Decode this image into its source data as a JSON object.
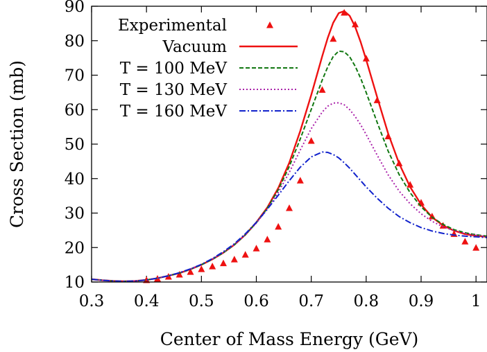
{
  "chart_data": {
    "type": "line",
    "title": "",
    "xlabel": "Center of Mass Energy (GeV)",
    "ylabel": "Cross Section (mb)",
    "xlim": [
      0.3,
      1.02
    ],
    "ylim": [
      10,
      90
    ],
    "xticks": [
      0.3,
      0.4,
      0.5,
      0.6,
      0.7,
      0.8,
      0.9,
      1
    ],
    "xtick_labels": [
      "0.3",
      "0.4",
      "0.5",
      "0.6",
      "0.7",
      "0.8",
      "0.9",
      "1"
    ],
    "yticks": [
      10,
      20,
      30,
      40,
      50,
      60,
      70,
      80,
      90
    ],
    "ytick_labels": [
      "10",
      "20",
      "30",
      "40",
      "50",
      "60",
      "70",
      "80",
      "90"
    ],
    "grid": false,
    "legend_position": "top-left",
    "series": [
      {
        "name": "Experimental",
        "style": "triangle-markers",
        "color": "#ee1111",
        "x": [
          0.4,
          0.42,
          0.44,
          0.46,
          0.48,
          0.5,
          0.52,
          0.54,
          0.56,
          0.58,
          0.6,
          0.62,
          0.64,
          0.66,
          0.68,
          0.7,
          0.72,
          0.74,
          0.76,
          0.78,
          0.8,
          0.82,
          0.84,
          0.86,
          0.88,
          0.9,
          0.92,
          0.94,
          0.96,
          0.98,
          1.0
        ],
        "y": [
          10.6,
          11.0,
          11.6,
          12.2,
          13.0,
          13.8,
          14.6,
          15.5,
          16.6,
          18.0,
          19.8,
          22.4,
          26.1,
          31.5,
          39.5,
          51.0,
          65.8,
          80.6,
          88.2,
          84.8,
          74.9,
          62.8,
          52.3,
          44.5,
          38.3,
          33.1,
          29.1,
          26.4,
          24.0,
          21.8,
          20.0
        ]
      },
      {
        "name": "Vacuum",
        "style": "solid",
        "color": "#ee1111",
        "x": [
          0.3,
          0.32,
          0.34,
          0.36,
          0.38,
          0.4,
          0.42,
          0.44,
          0.46,
          0.48,
          0.5,
          0.52,
          0.54,
          0.56,
          0.58,
          0.6,
          0.62,
          0.64,
          0.66,
          0.68,
          0.7,
          0.72,
          0.73,
          0.74,
          0.75,
          0.76,
          0.77,
          0.78,
          0.79,
          0.8,
          0.82,
          0.84,
          0.86,
          0.88,
          0.9,
          0.92,
          0.94,
          0.96,
          0.98,
          1.0,
          1.02
        ],
        "y": [
          10.8,
          10.5,
          10.3,
          10.2,
          10.3,
          10.6,
          11.1,
          11.8,
          12.6,
          13.7,
          15.0,
          16.6,
          18.5,
          20.8,
          23.7,
          27.3,
          31.6,
          37.3,
          44.6,
          53.8,
          64.3,
          75.5,
          80.8,
          85.2,
          88.0,
          88.6,
          87.2,
          84.0,
          79.6,
          74.5,
          63.6,
          53.1,
          44.4,
          37.6,
          32.5,
          28.8,
          26.4,
          24.9,
          23.9,
          23.4,
          23.1
        ]
      },
      {
        "name": "T = 100 MeV",
        "style": "dashed",
        "color": "#117711",
        "x": [
          0.3,
          0.32,
          0.34,
          0.36,
          0.38,
          0.4,
          0.42,
          0.44,
          0.46,
          0.48,
          0.5,
          0.52,
          0.54,
          0.56,
          0.58,
          0.6,
          0.62,
          0.64,
          0.66,
          0.68,
          0.7,
          0.72,
          0.73,
          0.74,
          0.75,
          0.76,
          0.77,
          0.78,
          0.79,
          0.8,
          0.82,
          0.84,
          0.86,
          0.88,
          0.9,
          0.92,
          0.94,
          0.96,
          0.98,
          1.0,
          1.02
        ],
        "y": [
          10.8,
          10.5,
          10.3,
          10.2,
          10.3,
          10.6,
          11.1,
          11.8,
          12.6,
          13.7,
          15.0,
          16.6,
          18.5,
          20.8,
          23.7,
          27.2,
          31.4,
          36.8,
          43.5,
          51.5,
          60.1,
          68.6,
          72.4,
          75.4,
          77.0,
          76.8,
          75.3,
          72.6,
          69.1,
          65.0,
          56.3,
          48.0,
          41.2,
          35.9,
          31.8,
          28.8,
          26.7,
          25.2,
          24.3,
          23.7,
          23.3
        ]
      },
      {
        "name": "T = 130 MeV",
        "style": "dotted",
        "color": "#aa22aa",
        "x": [
          0.3,
          0.32,
          0.34,
          0.36,
          0.38,
          0.4,
          0.42,
          0.44,
          0.46,
          0.48,
          0.5,
          0.52,
          0.54,
          0.56,
          0.58,
          0.6,
          0.62,
          0.64,
          0.66,
          0.68,
          0.7,
          0.72,
          0.73,
          0.74,
          0.75,
          0.76,
          0.77,
          0.78,
          0.79,
          0.8,
          0.82,
          0.84,
          0.86,
          0.88,
          0.9,
          0.92,
          0.94,
          0.96,
          0.98,
          1.0,
          1.02
        ],
        "y": [
          10.8,
          10.5,
          10.3,
          10.2,
          10.3,
          10.6,
          11.1,
          11.8,
          12.7,
          13.8,
          15.1,
          16.7,
          18.6,
          20.9,
          23.7,
          27.1,
          31.1,
          36.0,
          41.8,
          48.3,
          54.5,
          59.3,
          61.0,
          61.9,
          62.0,
          61.4,
          60.0,
          58.0,
          55.6,
          52.8,
          46.8,
          41.1,
          36.4,
          32.7,
          29.8,
          27.6,
          26.0,
          24.9,
          24.1,
          23.6,
          23.2
        ]
      },
      {
        "name": "T = 160 MeV",
        "style": "dash-dot",
        "color": "#1122cc",
        "x": [
          0.3,
          0.32,
          0.34,
          0.36,
          0.38,
          0.4,
          0.42,
          0.44,
          0.46,
          0.48,
          0.5,
          0.52,
          0.54,
          0.56,
          0.58,
          0.6,
          0.62,
          0.64,
          0.66,
          0.68,
          0.7,
          0.72,
          0.73,
          0.74,
          0.75,
          0.76,
          0.77,
          0.78,
          0.79,
          0.8,
          0.82,
          0.84,
          0.86,
          0.88,
          0.9,
          0.92,
          0.94,
          0.96,
          0.98,
          1.0,
          1.02
        ],
        "y": [
          10.8,
          10.5,
          10.3,
          10.2,
          10.3,
          10.6,
          11.1,
          11.8,
          12.7,
          13.8,
          15.1,
          16.8,
          18.8,
          21.1,
          24.0,
          27.3,
          31.1,
          35.2,
          39.4,
          43.3,
          46.3,
          47.7,
          47.6,
          47.0,
          46.0,
          44.6,
          43.0,
          41.2,
          39.4,
          37.6,
          34.3,
          31.4,
          29.0,
          27.2,
          25.8,
          24.8,
          24.1,
          23.6,
          23.3,
          23.1,
          22.9
        ]
      }
    ]
  }
}
